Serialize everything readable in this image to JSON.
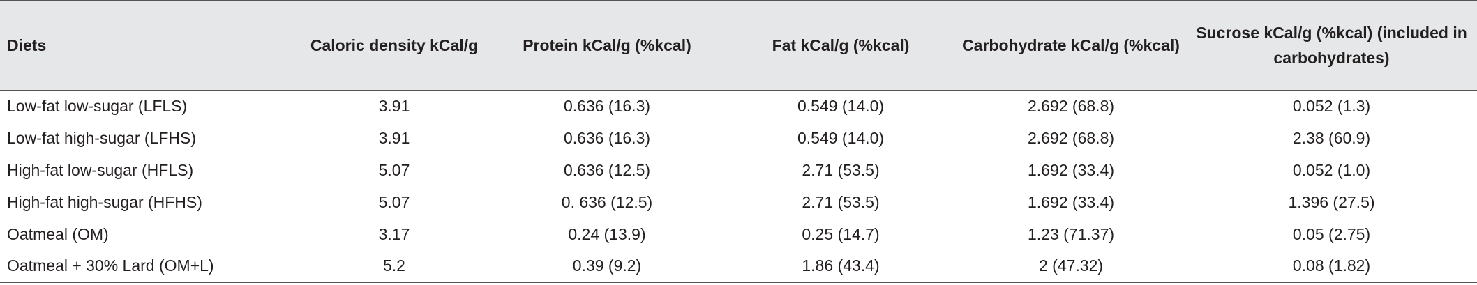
{
  "table": {
    "header": [
      "Diets",
      "Caloric density kCal/g",
      "Protein kCal/g (%kcal)",
      "Fat kCal/g (%kcal)",
      "Carbohydrate kCal/g (%kcal)",
      "Sucrose kCal/g (%kcal) (included in carbohydrates)"
    ],
    "rows": [
      [
        "Low-fat low-sugar (LFLS)",
        "3.91",
        "0.636 (16.3)",
        "0.549 (14.0)",
        "2.692 (68.8)",
        "0.052 (1.3)"
      ],
      [
        "Low-fat high-sugar (LFHS)",
        "3.91",
        "0.636 (16.3)",
        "0.549 (14.0)",
        "2.692 (68.8)",
        "2.38 (60.9)"
      ],
      [
        "High-fat low-sugar (HFLS)",
        "5.07",
        "0.636 (12.5)",
        "2.71 (53.5)",
        "1.692 (33.4)",
        "0.052 (1.0)"
      ],
      [
        "High-fat high-sugar (HFHS)",
        "5.07",
        "0. 636 (12.5)",
        "2.71 (53.5)",
        "1.692 (33.4)",
        "1.396 (27.5)"
      ],
      [
        "Oatmeal (OM)",
        "3.17",
        "0.24 (13.9)",
        "0.25 (14.7)",
        "1.23 (71.37)",
        "0.05 (2.75)"
      ],
      [
        "Oatmeal + 30% Lard (OM+L)",
        "5.2",
        "0.39 (9.2)",
        "1.86 (43.4)",
        "2 (47.32)",
        "0.08 (1.82)"
      ]
    ]
  }
}
